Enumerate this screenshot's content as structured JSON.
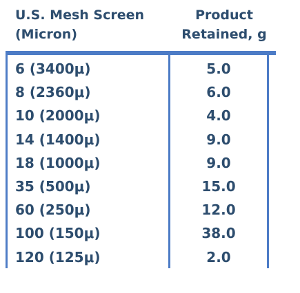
{
  "header": {
    "col1_line1": "U.S. Mesh Screen",
    "col1_line2": "(Micron)",
    "col2_line1": "Product",
    "col2_line2": "Retained, g"
  },
  "rows": [
    {
      "mesh": "6 (3400μ)",
      "value": "5.0"
    },
    {
      "mesh": "8 (2360μ)",
      "value": "6.0"
    },
    {
      "mesh": "10 (2000μ)",
      "value": "4.0"
    },
    {
      "mesh": "14 (1400μ)",
      "value": "9.0"
    },
    {
      "mesh": "18 (1000μ)",
      "value": "9.0"
    },
    {
      "mesh": "35 (500μ)",
      "value": "15.0"
    },
    {
      "mesh": "60 (250μ)",
      "value": "12.0"
    },
    {
      "mesh": "100 (150μ)",
      "value": "38.0"
    },
    {
      "mesh": "120 (125μ)",
      "value": "2.0"
    }
  ],
  "colors": {
    "text": "#2d4d6e",
    "rule": "#4d7cc6"
  }
}
